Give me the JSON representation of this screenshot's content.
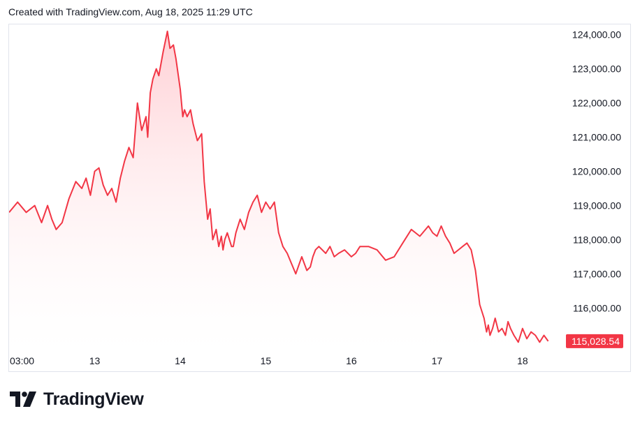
{
  "caption": "Created with TradingView.com, Aug 18, 2025 11:29 UTC",
  "logo_text": "TradingView",
  "colors": {
    "line": "#f23645",
    "fill_top": "#ffcdd2",
    "fill_bottom": "#ffffff",
    "price_label_bg": "#f23645",
    "axis_text": "#131722",
    "border": "#e0e3eb"
  },
  "chart_data": {
    "type": "area",
    "title": "",
    "xlabel": "",
    "ylabel": "",
    "x_tick_labels": [
      "03:00",
      "13",
      "14",
      "15",
      "16",
      "17",
      "18"
    ],
    "y_tick_labels": [
      "124,000.00",
      "123,000.00",
      "122,000.00",
      "121,000.00",
      "120,000.00",
      "119,000.00",
      "118,000.00",
      "117,000.00",
      "116,000.00"
    ],
    "y_ticks": [
      124000,
      123000,
      122000,
      121000,
      120000,
      119000,
      118000,
      117000,
      116000
    ],
    "ylim": [
      114700,
      124300
    ],
    "xlim": [
      0,
      6.45
    ],
    "last_price": 115028.54,
    "last_price_label": "115,028.54",
    "grid": false,
    "series": [
      {
        "x": [
          0,
          0.1,
          0.2,
          0.3,
          0.38,
          0.45,
          0.5,
          0.55,
          0.62,
          0.7,
          0.78,
          0.85,
          0.9,
          0.95,
          1.0,
          1.05,
          1.1,
          1.15,
          1.2,
          1.25,
          1.3,
          1.35,
          1.4,
          1.45,
          1.5,
          1.55,
          1.6,
          1.62,
          1.65,
          1.68,
          1.72,
          1.75,
          1.8,
          1.85,
          1.88,
          1.92,
          1.95,
          2.0,
          2.03,
          2.05,
          2.08,
          2.12,
          2.15,
          2.2,
          2.25,
          2.28,
          2.32,
          2.35,
          2.38,
          2.42,
          2.45,
          2.48,
          2.5,
          2.52,
          2.55,
          2.6,
          2.62,
          2.65,
          2.7,
          2.75,
          2.8,
          2.85,
          2.9,
          2.95,
          3.0,
          3.05,
          3.1,
          3.15,
          3.2,
          3.25,
          3.3,
          3.35,
          3.42,
          3.48,
          3.52,
          3.55,
          3.58,
          3.62,
          3.7,
          3.75,
          3.8,
          3.85,
          3.92,
          4.0,
          4.05,
          4.1,
          4.2,
          4.3,
          4.4,
          4.5,
          4.6,
          4.7,
          4.8,
          4.9,
          4.95,
          5.0,
          5.05,
          5.1,
          5.15,
          5.2,
          5.25,
          5.3,
          5.35,
          5.4,
          5.45,
          5.5,
          5.55,
          5.58,
          5.6,
          5.62,
          5.65,
          5.68,
          5.72,
          5.76,
          5.8,
          5.83,
          5.86,
          5.9,
          5.95,
          6.0,
          6.05,
          6.1,
          6.15,
          6.2,
          6.25,
          6.3
        ],
        "values": [
          118800,
          119100,
          118800,
          119000,
          118500,
          119000,
          118600,
          118300,
          118500,
          119200,
          119700,
          119500,
          119800,
          119300,
          120000,
          120100,
          119600,
          119300,
          119500,
          119100,
          119800,
          120300,
          120700,
          120400,
          122000,
          121200,
          121600,
          121000,
          122300,
          122700,
          123000,
          122800,
          123500,
          124100,
          123600,
          123700,
          123300,
          122400,
          121600,
          121800,
          121600,
          121800,
          121400,
          120900,
          121100,
          119700,
          118600,
          118900,
          118000,
          118300,
          117800,
          118100,
          117700,
          118000,
          118200,
          117800,
          117800,
          118200,
          118600,
          118300,
          118800,
          119100,
          119300,
          118800,
          119100,
          118900,
          119100,
          118200,
          117800,
          117600,
          117300,
          117000,
          117500,
          117100,
          117200,
          117500,
          117700,
          117800,
          117600,
          117800,
          117500,
          117600,
          117700,
          117500,
          117600,
          117800,
          117800,
          117700,
          117400,
          117500,
          117900,
          118300,
          118100,
          118400,
          118200,
          118100,
          118400,
          118100,
          117900,
          117600,
          117700,
          117800,
          117900,
          117700,
          117100,
          116100,
          115700,
          115300,
          115500,
          115200,
          115400,
          115700,
          115300,
          115400,
          115200,
          115600,
          115400,
          115200,
          115000,
          115400,
          115100,
          115300,
          115200,
          115000,
          115200,
          115028.54
        ]
      }
    ]
  }
}
